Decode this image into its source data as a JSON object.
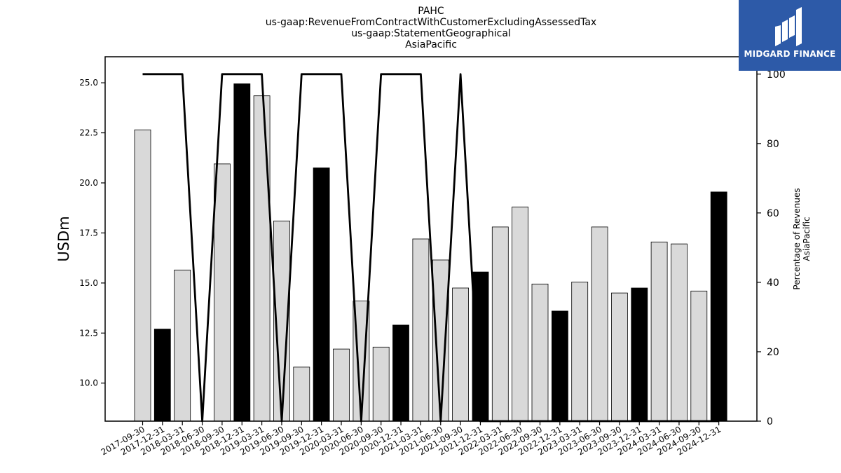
{
  "chart_data": {
    "type": "bar",
    "title_lines": [
      "PAHC",
      "us-gaap:RevenueFromContractWithCustomerExcludingAssessedTax",
      "us-gaap:StatementGeographical",
      "AsiaPacific"
    ],
    "ylabel": "USDm",
    "ylabel_right_lines": [
      "Percentage of Revenues",
      "AsiaPacific"
    ],
    "ylim": [
      8.1,
      26.3
    ],
    "ylim_right": [
      0,
      105
    ],
    "y_ticks": [
      "10.0",
      "12.5",
      "15.0",
      "17.5",
      "20.0",
      "22.5",
      "25.0"
    ],
    "y_ticks_right": [
      "0",
      "20",
      "40",
      "60",
      "80",
      "100"
    ],
    "categories": [
      "2017-09-30",
      "2017-12-31",
      "2018-03-31",
      "2018-06-30",
      "2018-09-30",
      "2018-12-31",
      "2019-03-31",
      "2019-06-30",
      "2019-09-30",
      "2019-12-31",
      "2020-03-31",
      "2020-06-30",
      "2020-09-30",
      "2020-12-31",
      "2021-03-31",
      "2021-06-30",
      "2021-09-30",
      "2021-12-31",
      "2022-03-31",
      "2022-06-30",
      "2022-09-30",
      "2022-12-31",
      "2023-03-31",
      "2023-06-30",
      "2023-09-30",
      "2023-12-31",
      "2024-03-31",
      "2024-06-30",
      "2024-09-30",
      "2024-12-31"
    ],
    "values": [
      22.65,
      12.7,
      15.65,
      null,
      20.95,
      24.95,
      24.35,
      18.1,
      10.8,
      20.75,
      11.7,
      14.1,
      11.8,
      12.9,
      17.2,
      16.15,
      14.75,
      15.55,
      17.8,
      18.8,
      14.95,
      13.6,
      15.05,
      17.8,
      14.5,
      14.75,
      17.05,
      16.95,
      14.6,
      19.55
    ],
    "bar_highlight": [
      false,
      true,
      false,
      false,
      false,
      true,
      false,
      false,
      false,
      true,
      false,
      false,
      false,
      true,
      false,
      false,
      false,
      true,
      false,
      false,
      false,
      true,
      false,
      false,
      false,
      true,
      false,
      false,
      false,
      true
    ],
    "percentage_line": [
      100,
      100,
      100,
      0,
      100,
      100,
      100,
      0,
      100,
      100,
      100,
      0,
      100,
      100,
      100,
      0,
      100,
      0,
      0,
      0,
      0,
      0,
      0,
      0,
      0,
      0,
      0,
      0,
      0,
      0
    ],
    "colors": {
      "bar_default": "#d9d9d9",
      "bar_highlight": "#000000",
      "line": "#000000"
    }
  },
  "logo": {
    "text": "MIDGARD FINANCE",
    "color": "#2d5aa8"
  }
}
